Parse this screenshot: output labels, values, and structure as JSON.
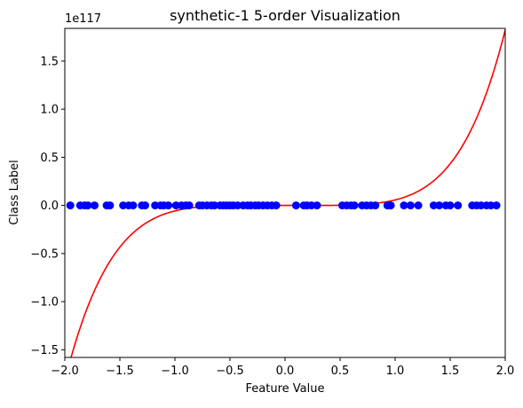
{
  "chart_data": {
    "type": "scatter",
    "title": "synthetic-1 5-order Visualization",
    "xlabel": "Feature Value",
    "ylabel": "Class Label",
    "offset_text": "1e117",
    "scale": 1e+117,
    "xlim": [
      -2.0,
      2.0
    ],
    "ylim": [
      -1.58,
      1.84
    ],
    "xticks": [
      -2.0,
      -1.5,
      -1.0,
      -0.5,
      0.0,
      0.5,
      1.0,
      1.5,
      2.0
    ],
    "xtick_labels": [
      "−2.0",
      "−1.5",
      "−1.0",
      "−0.5",
      "0.0",
      "0.5",
      "1.0",
      "1.5",
      "2.0"
    ],
    "yticks": [
      -1.5,
      -1.0,
      -0.5,
      0.0,
      0.5,
      1.0,
      1.5
    ],
    "ytick_labels": [
      "−1.5",
      "−1.0",
      "−0.5",
      "0.0",
      "0.5",
      "1.0",
      "1.5"
    ],
    "grid": false,
    "series": [
      {
        "kind": "scatter",
        "color": "#0000ff",
        "x": [
          -1.95,
          -1.86,
          -1.82,
          -1.79,
          -1.73,
          -1.62,
          -1.59,
          -1.47,
          -1.42,
          -1.38,
          -1.3,
          -1.27,
          -1.18,
          -1.13,
          -1.1,
          -1.06,
          -0.99,
          -0.94,
          -0.9,
          -0.87,
          -0.78,
          -0.75,
          -0.71,
          -0.67,
          -0.64,
          -0.59,
          -0.56,
          -0.53,
          -0.5,
          -0.47,
          -0.43,
          -0.38,
          -0.34,
          -0.31,
          -0.27,
          -0.24,
          -0.2,
          -0.16,
          -0.12,
          -0.08,
          0.1,
          0.17,
          0.2,
          0.24,
          0.29,
          0.52,
          0.56,
          0.6,
          0.63,
          0.7,
          0.74,
          0.78,
          0.82,
          0.93,
          0.96,
          1.08,
          1.14,
          1.21,
          1.35,
          1.4,
          1.46,
          1.5,
          1.57,
          1.7,
          1.74,
          1.78,
          1.83,
          1.87,
          1.92
        ],
        "y": [
          0,
          0,
          0,
          0,
          0,
          0,
          0,
          0,
          0,
          0,
          0,
          0,
          0,
          0,
          0,
          0,
          0,
          0,
          0,
          0,
          0,
          0,
          0,
          0,
          0,
          0,
          0,
          0,
          0,
          0,
          0,
          0,
          0,
          0,
          0,
          0,
          0,
          0,
          0,
          0,
          0,
          0,
          0,
          0,
          0,
          0,
          0,
          0,
          0,
          0,
          0,
          0,
          0,
          0,
          0,
          0,
          0,
          0,
          0,
          0,
          0,
          0,
          0,
          0,
          0,
          0,
          0,
          0,
          0
        ]
      },
      {
        "kind": "line",
        "color": "#ff0000",
        "model": "y = 5.7e115 * x^5",
        "coef_x5": 0.057,
        "x": [
          -2.0,
          -1.9,
          -1.8,
          -1.7,
          -1.6,
          -1.5,
          -1.4,
          -1.3,
          -1.2,
          -1.1,
          -1.0,
          -0.9,
          -0.8,
          -0.7,
          -0.6,
          -0.5,
          -0.4,
          -0.3,
          -0.2,
          -0.1,
          0.0,
          0.1,
          0.2,
          0.3,
          0.4,
          0.5,
          0.6,
          0.7,
          0.8,
          0.9,
          1.0,
          1.1,
          1.2,
          1.3,
          1.4,
          1.5,
          1.6,
          1.7,
          1.8,
          1.9,
          2.0
        ],
        "y": [
          -1.824,
          -1.411,
          -1.077,
          -0.809,
          -0.598,
          -0.433,
          -0.307,
          -0.212,
          -0.142,
          -0.092,
          -0.057,
          -0.034,
          -0.019,
          -0.01,
          -0.004,
          -0.002,
          -0.001,
          0.0,
          0.0,
          0.0,
          0.0,
          0.0,
          0.0,
          0.0,
          0.001,
          0.002,
          0.004,
          0.01,
          0.019,
          0.034,
          0.057,
          0.092,
          0.142,
          0.212,
          0.307,
          0.433,
          0.598,
          0.809,
          1.077,
          1.411,
          1.824
        ]
      }
    ]
  }
}
